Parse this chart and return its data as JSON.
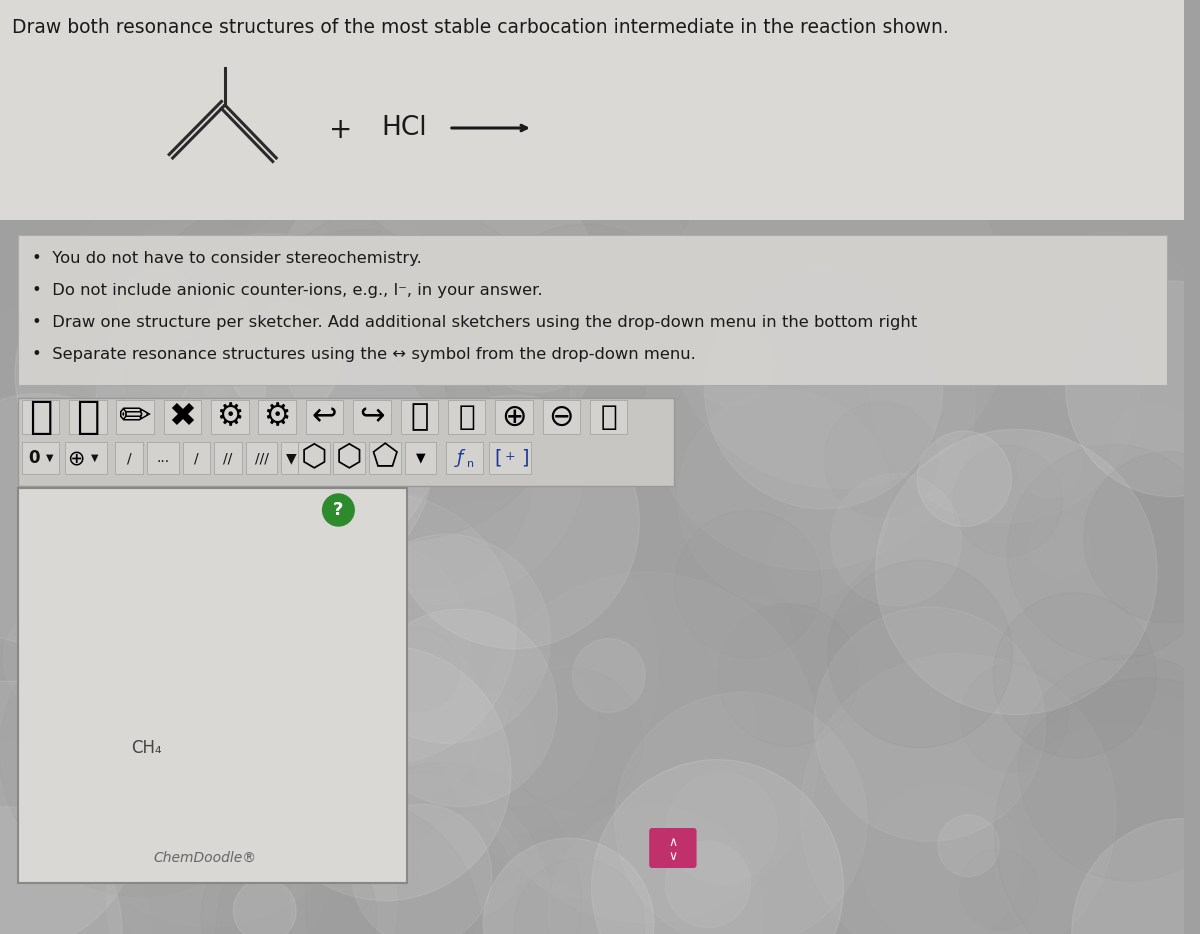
{
  "title": "Draw both resonance structures of the most stable carbocation intermediate in the reaction shown.",
  "title_fontsize": 13.5,
  "bullet_points": [
    "You do not have to consider stereochemistry.",
    "Do not include anionic counter-ions, e.g., I⁻, in your answer.",
    "Draw one structure per sketcher. Add additional sketchers using the drop-down menu in the bottom right",
    "Separate resonance structures using the ↔ symbol from the drop-down menu."
  ],
  "reaction_plus": "+",
  "reaction_reagent": "HCl",
  "bg_color": "#a8a8a8",
  "top_area_color": "#dbd9d6",
  "bullet_box_color": "#d4d2cf",
  "toolbar_bg": "#c8c6c3",
  "canvas_bg": "#cac8c5",
  "ch4_text": "CH₄",
  "chemdoodle_text": "ChemDoodle®",
  "question_mark_color": "#2d8a2d",
  "question_mark_text": "?",
  "arrow_button_color": "#c0306a",
  "bond_color": "#2a2a2a",
  "text_color": "#1a1a1a"
}
